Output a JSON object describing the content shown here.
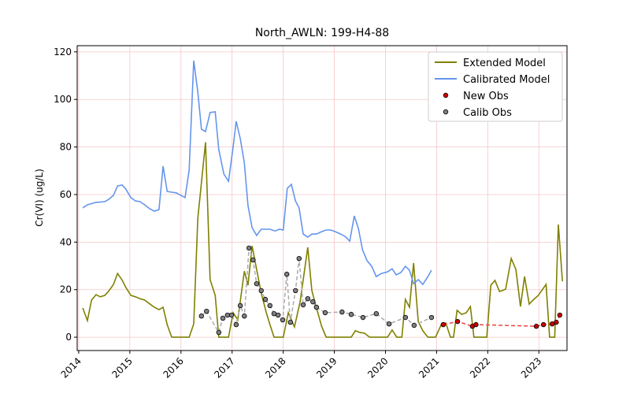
{
  "chart_data": {
    "type": "line",
    "title": "North_AWLN: 199-H4-88",
    "ylabel": "Cr(VI) (ug/L)",
    "xlim": [
      2013.97,
      2023.55
    ],
    "xticks": [
      2014,
      2015,
      2016,
      2017,
      2018,
      2019,
      2020,
      2021,
      2022,
      2023
    ],
    "ylim": [
      -5.6,
      122.6
    ],
    "yticks": [
      0,
      20,
      40,
      60,
      80,
      100,
      120
    ],
    "grid": true,
    "grid_color": "#f4c7c7",
    "legend": "upper right",
    "series": [
      {
        "name": "Extended Model",
        "color": "#808000",
        "mode": "line",
        "x": [
          2014.08,
          2014.17,
          2014.25,
          2014.34,
          2014.42,
          2014.51,
          2014.59,
          2014.68,
          2014.76,
          2014.85,
          2014.92,
          2015.02,
          2015.11,
          2015.2,
          2015.29,
          2015.39,
          2015.48,
          2015.57,
          2015.65,
          2015.73,
          2015.82,
          2016.16,
          2016.25,
          2016.33,
          2016.48,
          2016.57,
          2016.67,
          2016.74,
          2016.93,
          2017.02,
          2017.11,
          2017.24,
          2017.31,
          2017.39,
          2017.48,
          2017.57,
          2017.67,
          2017.74,
          2017.82,
          2018.0,
          2018.1,
          2018.22,
          2018.33,
          2018.48,
          2018.56,
          2018.65,
          2018.75,
          2018.84,
          2019.33,
          2019.41,
          2019.5,
          2019.59,
          2019.69,
          2020.04,
          2020.13,
          2020.22,
          2020.32,
          2020.39,
          2020.47,
          2020.55,
          2020.64,
          2020.73,
          2020.83,
          2020.98,
          2021.09,
          2021.18,
          2021.27,
          2021.33,
          2021.4,
          2021.49,
          2021.58,
          2021.66,
          2021.73,
          2021.98,
          2022.06,
          2022.14,
          2022.23,
          2022.35,
          2022.46,
          2022.55,
          2022.64,
          2022.72,
          2022.81,
          2022.9,
          2022.99,
          2023.14,
          2023.21,
          2023.31,
          2023.38,
          2023.46
        ],
        "values": [
          12.3,
          7,
          15.6,
          17.9,
          17,
          17.6,
          19.5,
          22.2,
          26.8,
          24,
          21,
          17.6,
          17,
          16.2,
          15.6,
          14,
          12.6,
          11.6,
          12.6,
          5.3,
          0,
          0,
          5.6,
          50,
          82,
          24.2,
          17.6,
          0,
          0,
          10.3,
          7.3,
          27.8,
          21.9,
          38.4,
          28.5,
          18.6,
          10.3,
          5.3,
          0,
          0,
          10.3,
          4.3,
          14.9,
          37.8,
          19.6,
          12.3,
          4.6,
          0,
          0,
          2.7,
          2,
          1.7,
          0,
          0,
          3,
          0,
          0,
          15.9,
          12.6,
          31.2,
          6.6,
          2.7,
          0,
          0,
          5.3,
          6,
          0,
          0,
          11.3,
          9.6,
          10.3,
          12.9,
          0,
          0,
          21.9,
          23.9,
          19.2,
          20.2,
          33.1,
          28.5,
          12.9,
          25.5,
          13.9,
          15.9,
          17.6,
          22.2,
          0,
          0,
          47.4,
          23.5
        ]
      },
      {
        "name": "Calibrated Model",
        "color": "#6495ed",
        "mode": "line",
        "x": [
          2014.08,
          2014.17,
          2014.34,
          2014.51,
          2014.59,
          2014.68,
          2014.76,
          2014.85,
          2014.92,
          2015.02,
          2015.11,
          2015.2,
          2015.29,
          2015.39,
          2015.48,
          2015.57,
          2015.65,
          2015.73,
          2015.82,
          2015.91,
          2016.08,
          2016.16,
          2016.25,
          2016.33,
          2016.4,
          2016.48,
          2016.57,
          2016.67,
          2016.74,
          2016.84,
          2016.93,
          2017.02,
          2017.08,
          2017.16,
          2017.24,
          2017.31,
          2017.39,
          2017.48,
          2017.57,
          2017.74,
          2017.84,
          2017.93,
          2018.0,
          2018.08,
          2018.16,
          2018.24,
          2018.31,
          2018.39,
          2018.48,
          2018.56,
          2018.65,
          2018.75,
          2018.84,
          2018.93,
          2019.02,
          2019.12,
          2019.21,
          2019.3,
          2019.39,
          2019.47,
          2019.55,
          2019.64,
          2019.73,
          2019.82,
          2019.92,
          2020.04,
          2020.13,
          2020.21,
          2020.3,
          2020.39,
          2020.47,
          2020.55,
          2020.64,
          2020.73,
          2020.83,
          2020.9
        ],
        "values": [
          54.4,
          55.7,
          56.7,
          57,
          58,
          59.7,
          63.6,
          64,
          62.3,
          58.7,
          57.3,
          57,
          55.7,
          54,
          53,
          53.7,
          71.9,
          61.3,
          61,
          60.7,
          58.7,
          70.3,
          116.3,
          103.1,
          87.5,
          86.5,
          94.5,
          94.8,
          78.9,
          68.6,
          65.6,
          79.9,
          90.8,
          83.5,
          73.3,
          55.4,
          46.1,
          42.8,
          45.4,
          45.4,
          44.7,
          45.4,
          45.1,
          62.6,
          64.3,
          57.3,
          54.4,
          43.4,
          42.1,
          43.4,
          43.4,
          44.4,
          45.1,
          45.1,
          44.4,
          43.4,
          42.4,
          40.4,
          51,
          45.7,
          36.8,
          32.2,
          29.8,
          25.5,
          26.8,
          27.5,
          28.8,
          26.2,
          27.2,
          29.8,
          28.2,
          22.5,
          24.2,
          22.2,
          25.5,
          28.2
        ]
      },
      {
        "name": "New Obs",
        "color": "#cc0000",
        "mode": "markers",
        "line_color": "#ee4444",
        "dashed": true,
        "x": [
          2021.13,
          2021.41,
          2021.7,
          2021.77,
          2022.95,
          2023.09,
          2023.26,
          2023.34,
          2023.41
        ],
        "values": [
          5.3,
          6.6,
          4.6,
          5.3,
          4.6,
          5.3,
          5.6,
          6.3,
          9.3
        ]
      },
      {
        "name": "Calib Obs",
        "color": "#808080",
        "mode": "markers",
        "line_color": "#aaaaaa",
        "dashed": true,
        "x": [
          2016.4,
          2016.5,
          2016.74,
          2016.82,
          2016.91,
          2016.99,
          2017.08,
          2017.16,
          2017.24,
          2017.33,
          2017.41,
          2017.48,
          2017.57,
          2017.65,
          2017.74,
          2017.82,
          2017.9,
          2017.99,
          2018.07,
          2018.14,
          2018.24,
          2018.31,
          2018.39,
          2018.48,
          2018.58,
          2018.65,
          2018.82,
          2019.15,
          2019.33,
          2019.56,
          2019.82,
          2020.07,
          2020.39,
          2020.56,
          2020.9
        ],
        "values": [
          8.9,
          10.9,
          2,
          8,
          9.3,
          9.3,
          5.3,
          13.3,
          8.9,
          37.5,
          32.5,
          22.5,
          19.6,
          15.9,
          13.3,
          9.9,
          9.3,
          7.3,
          26.5,
          6.3,
          19.6,
          33.1,
          13.6,
          16.2,
          14.9,
          12.6,
          10.3,
          10.6,
          9.6,
          8.3,
          9.9,
          5.6,
          8.3,
          5,
          8.3
        ]
      }
    ]
  }
}
